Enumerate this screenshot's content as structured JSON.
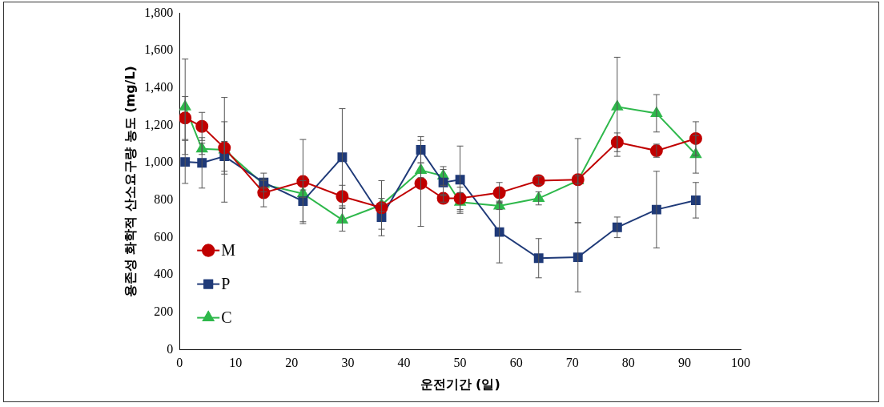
{
  "chart_data": {
    "type": "line",
    "x_label": "운전기간 (일)",
    "y_label": "용존성 화학적 산소요구량 농도 (mg/L)",
    "x": [
      1,
      4,
      8,
      15,
      22,
      29,
      36,
      43,
      47,
      50,
      57,
      64,
      71,
      78,
      85,
      92
    ],
    "xlim": [
      0,
      100
    ],
    "xticks": [
      0,
      10,
      20,
      30,
      40,
      50,
      60,
      70,
      80,
      90,
      100
    ],
    "ylim": [
      0,
      1800
    ],
    "yticks": [
      0,
      200,
      400,
      600,
      800,
      {
        "value": 1000,
        "label": "1,000"
      },
      {
        "value": 1200,
        "label": "1,200"
      },
      {
        "value": 1400,
        "label": "1,400"
      },
      {
        "value": 1600,
        "label": "1,600"
      },
      {
        "value": 1800,
        "label": "1,800"
      }
    ],
    "grid": false,
    "legend": "lower left",
    "series": [
      {
        "name": "M",
        "color": "#c00000",
        "marker": "circle",
        "line_style": "solid",
        "values": [
          1240,
          1195,
          1080,
          840,
          900,
          820,
          760,
          890,
          810,
          810,
          840,
          905,
          910,
          1110,
          1065,
          1130
        ],
        "errors": [
          115,
          75,
          140,
          75,
          225,
          60,
          20,
          230,
          20,
          60,
          55,
          20,
          20,
          50,
          35,
          90
        ]
      },
      {
        "name": "P",
        "color": "#1f3a78",
        "marker": "square",
        "line_style": "solid",
        "values": [
          1005,
          1000,
          1035,
          895,
          795,
          1030,
          710,
          1070,
          895,
          910,
          630,
          490,
          495,
          655,
          750,
          800
        ],
        "errors": [
          115,
          135,
          80,
          50,
          110,
          260,
          100,
          70,
          70,
          180,
          165,
          105,
          185,
          55,
          205,
          95
        ]
      },
      {
        "name": "C",
        "color": "#2eb84b",
        "marker": "triangle",
        "line_style": "solid",
        "values": [
          1300,
          1075,
          1070,
          885,
          835,
          695,
          775,
          960,
          930,
          790,
          770,
          810,
          905,
          1300,
          1265,
          1045
        ],
        "errors": [
          255,
          30,
          280,
          20,
          20,
          60,
          130,
          40,
          50,
          50,
          20,
          35,
          225,
          265,
          100,
          100
        ]
      }
    ]
  }
}
